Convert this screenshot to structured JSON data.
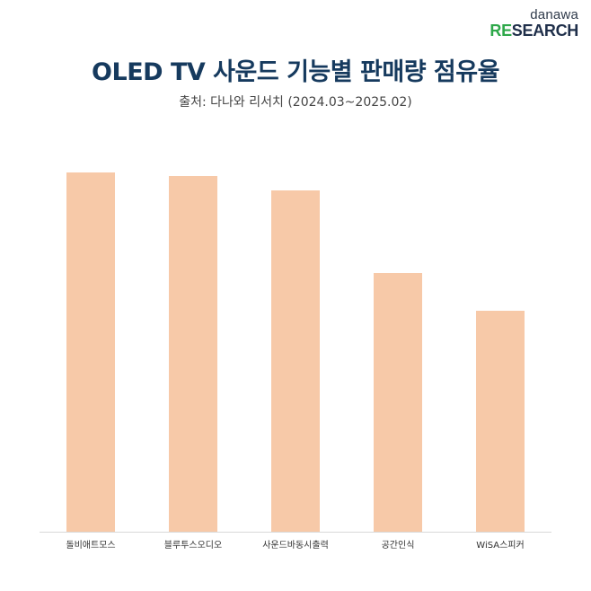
{
  "logo": {
    "top": "danawa",
    "re": "RE",
    "rest": "SEARCH"
  },
  "colors": {
    "bar": "#f7c9a8",
    "axis": "#d9d9d9",
    "title": "#163a5e",
    "logo_green": "#2ea84a",
    "logo_navy": "#1f2f4a"
  },
  "chart_data": {
    "type": "bar",
    "title": "OLED TV 사운드 기능별 판매량 점유율",
    "subtitle": "출처: 다나와 리서치 (2024.03~2025.02)",
    "categories": [
      "돌비애트모스",
      "블루투스오디오",
      "사운드바동시출력",
      "공간인식",
      "WiSA스피커"
    ],
    "values": [
      100,
      99,
      95,
      72,
      61.5
    ],
    "xlabel": "",
    "ylabel": "",
    "ylim": [
      0,
      100
    ],
    "grid": false,
    "legend": "none"
  }
}
